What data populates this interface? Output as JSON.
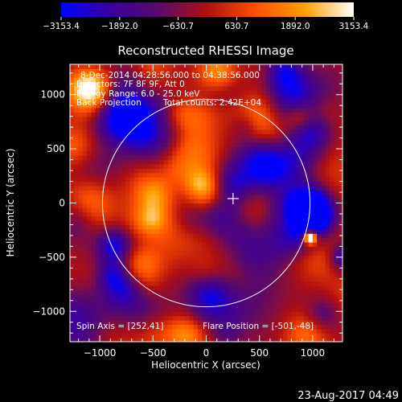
{
  "chart_data": {
    "type": "heatmap",
    "title": "Reconstructed RHESSI Image",
    "xlabel": "Heliocentric X (arcsec)",
    "ylabel": "Heliocentric Y (arcsec)",
    "xlim": [
      -1280,
      1280
    ],
    "ylim": [
      -1280,
      1280
    ],
    "x_ticks": [
      -1000,
      -500,
      0,
      500,
      1000
    ],
    "y_ticks": [
      -1000,
      -500,
      0,
      500,
      1000
    ],
    "x_tick_labels": [
      "−1000",
      "−500",
      "0",
      "500",
      "1000"
    ],
    "y_tick_labels": [
      "−1000",
      "−500",
      "0",
      "500",
      "1000"
    ],
    "colorbar": {
      "min": -3153.4,
      "max": 3153.4,
      "ticks": [
        -3153.4,
        -1892.0,
        -630.7,
        630.7,
        1892.0,
        3153.4
      ],
      "tick_labels": [
        "−3153.4",
        "−1892.0",
        "−630.7",
        "630.7",
        "1892.0",
        "3153.4"
      ],
      "colors": [
        "#0000ff",
        "#3a00a0",
        "#5a0a6a",
        "#b01010",
        "#ff5000",
        "#ffa000",
        "#ffffff"
      ]
    },
    "solar_disk_radius_arcsec": 975,
    "flare_position": [
      -501,
      -48
    ],
    "cross_marker": [
      252,
      41
    ],
    "bright_source": [
      955,
      -330
    ],
    "annotations": [
      "8-Dec-2014 04:28:56.000 to 04:38:56.000",
      "Detectors: 7F 8F 9F, Att 0",
      "Energy Range: 6.0 - 25.0 keV",
      "Back Projection",
      "Total counts: 2.42E+04",
      "Spin Axis = [252,41]",
      "Flare Position = [-501,-48]"
    ]
  },
  "footer": {
    "timestamp": "23-Aug-2017 04:49"
  },
  "colors": {
    "axis": "#ffffff",
    "background": "#000000",
    "limb": "#ffffff"
  }
}
